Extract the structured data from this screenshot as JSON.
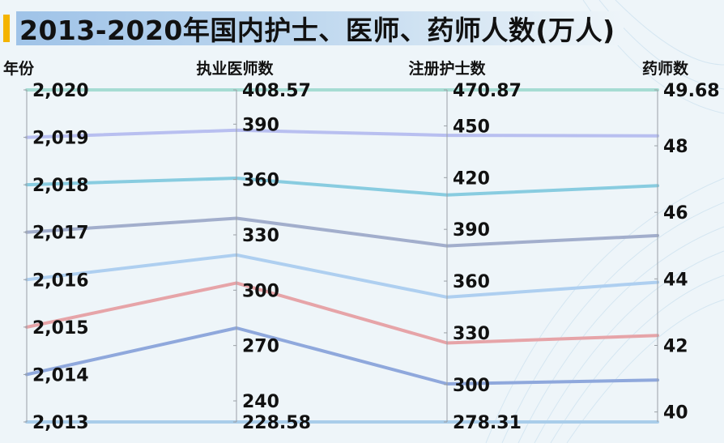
{
  "title": "2013-2020年国内护士、医师、药师人数(万人)",
  "colors": {
    "title_accent": "#f4b400",
    "axis_line": "#9aa0a6",
    "background": "#eef5f9"
  },
  "chart_data": {
    "type": "parallel_coordinates",
    "title": "2013-2020年国内护士、医师、药师人数(万人)",
    "axes": [
      {
        "name": "年份",
        "range": [
          2013,
          2020
        ],
        "ticks": [
          "2,013",
          "2,014",
          "2,015",
          "2,016",
          "2,017",
          "2,018",
          "2,019",
          "2,020"
        ],
        "tick_values": [
          2013,
          2014,
          2015,
          2016,
          2017,
          2018,
          2019,
          2020
        ]
      },
      {
        "name": "执业医师数",
        "range": [
          228.58,
          408.57
        ],
        "ticks": [
          "228.58",
          "240",
          "270",
          "300",
          "330",
          "360",
          "390",
          "408.57"
        ],
        "tick_values": [
          228.58,
          240,
          270,
          300,
          330,
          360,
          390,
          408.57
        ]
      },
      {
        "name": "注册护士数",
        "range": [
          278.31,
          470.87
        ],
        "ticks": [
          "278.31",
          "300",
          "330",
          "360",
          "390",
          "420",
          "450",
          "470.87"
        ],
        "tick_values": [
          278.31,
          300,
          330,
          360,
          390,
          420,
          450,
          470.87
        ]
      },
      {
        "name": "药师数",
        "range": [
          39.7,
          49.68
        ],
        "ticks": [
          "40",
          "42",
          "44",
          "46",
          "48",
          "49.68"
        ],
        "tick_values": [
          40,
          42,
          44,
          46,
          48,
          49.68
        ]
      }
    ],
    "series": [
      {
        "year": 2013,
        "values": [
          2013,
          228.58,
          278.31,
          39.7
        ],
        "color": "#a9cdea"
      },
      {
        "year": 2014,
        "values": [
          2014,
          279.5,
          300.4,
          40.96
        ],
        "color": "#8fa8dc"
      },
      {
        "year": 2015,
        "values": [
          2015,
          303.9,
          324.1,
          42.3
        ],
        "color": "#e6a4a8"
      },
      {
        "year": 2016,
        "values": [
          2016,
          319.1,
          350.7,
          43.9
        ],
        "color": "#aecff0"
      },
      {
        "year": 2017,
        "values": [
          2017,
          339.0,
          380.4,
          45.3
        ],
        "color": "#a2aecc"
      },
      {
        "year": 2018,
        "values": [
          2018,
          360.7,
          409.9,
          46.8
        ],
        "color": "#88cce0"
      },
      {
        "year": 2019,
        "values": [
          2019,
          386.7,
          444.5,
          48.3
        ],
        "color": "#b8bff0"
      },
      {
        "year": 2020,
        "values": [
          2020,
          408.57,
          470.87,
          49.68
        ],
        "color": "#a6dcd3"
      }
    ]
  }
}
